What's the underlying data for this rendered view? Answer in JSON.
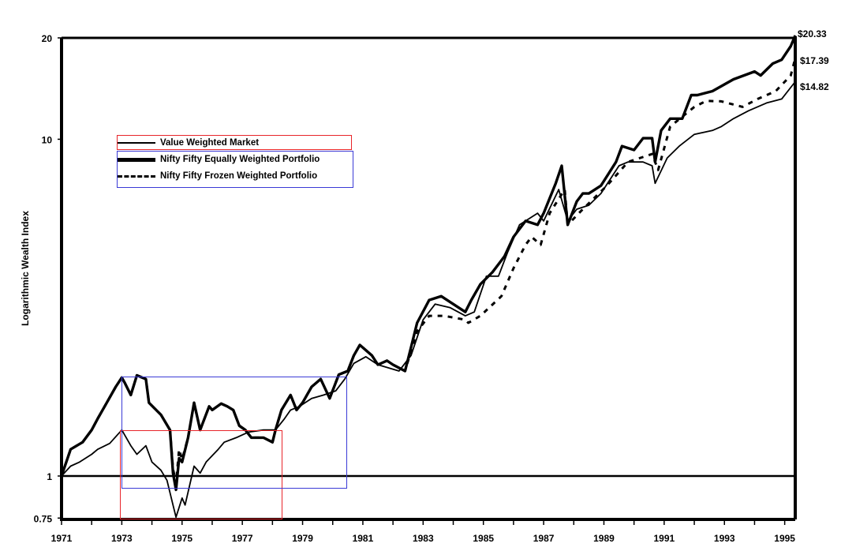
{
  "chart_data": {
    "type": "line",
    "title": "",
    "ylabel": "Logarithmic Wealth Index",
    "xlabel": "",
    "y_scale": "log",
    "ylim": [
      0.75,
      20
    ],
    "xlim": [
      1971,
      1995.35
    ],
    "y_ticks": [
      "20",
      "10",
      "1",
      "0.75"
    ],
    "y_tick_values": [
      20,
      10,
      1,
      0.75
    ],
    "x_ticks": [
      "1971",
      "1973",
      "1975",
      "1977",
      "1979",
      "1981",
      "1983",
      "1985",
      "1987",
      "1989",
      "1991",
      "1993",
      "1995"
    ],
    "reference_line": 1,
    "legend_placement": "upper-left",
    "grid": false,
    "series": [
      {
        "name": "Value Weighted Market",
        "style": "thin-solid",
        "end_label": "$14.82",
        "points": [
          [
            1971.0,
            1.0
          ],
          [
            1971.3,
            1.07
          ],
          [
            1971.6,
            1.1
          ],
          [
            1972.0,
            1.16
          ],
          [
            1972.2,
            1.2
          ],
          [
            1972.6,
            1.25
          ],
          [
            1973.0,
            1.37
          ],
          [
            1973.3,
            1.23
          ],
          [
            1973.5,
            1.16
          ],
          [
            1973.8,
            1.23
          ],
          [
            1974.0,
            1.1
          ],
          [
            1974.3,
            1.04
          ],
          [
            1974.5,
            0.97
          ],
          [
            1974.7,
            0.82
          ],
          [
            1974.8,
            0.755
          ],
          [
            1975.0,
            0.86
          ],
          [
            1975.1,
            0.82
          ],
          [
            1975.4,
            1.07
          ],
          [
            1975.6,
            1.02
          ],
          [
            1975.8,
            1.1
          ],
          [
            1976.2,
            1.2
          ],
          [
            1976.4,
            1.26
          ],
          [
            1976.8,
            1.3
          ],
          [
            1977.2,
            1.35
          ],
          [
            1977.7,
            1.37
          ],
          [
            1978.1,
            1.37
          ],
          [
            1978.4,
            1.48
          ],
          [
            1978.6,
            1.57
          ],
          [
            1978.9,
            1.61
          ],
          [
            1979.3,
            1.7
          ],
          [
            1979.7,
            1.74
          ],
          [
            1980.1,
            1.79
          ],
          [
            1980.4,
            1.94
          ],
          [
            1980.7,
            2.16
          ],
          [
            1981.1,
            2.26
          ],
          [
            1981.5,
            2.14
          ],
          [
            1982.2,
            2.05
          ],
          [
            1982.6,
            2.28
          ],
          [
            1983.0,
            2.91
          ],
          [
            1983.4,
            3.24
          ],
          [
            1983.9,
            3.16
          ],
          [
            1984.4,
            2.99
          ],
          [
            1984.7,
            3.07
          ],
          [
            1985.1,
            3.92
          ],
          [
            1985.5,
            3.92
          ],
          [
            1985.8,
            4.61
          ],
          [
            1986.2,
            5.57
          ],
          [
            1986.8,
            6.03
          ],
          [
            1987.0,
            5.72
          ],
          [
            1987.5,
            7.09
          ],
          [
            1987.8,
            5.72
          ],
          [
            1988.1,
            6.2
          ],
          [
            1988.5,
            6.37
          ],
          [
            1988.9,
            6.9
          ],
          [
            1989.5,
            8.34
          ],
          [
            1989.8,
            8.56
          ],
          [
            1990.3,
            8.56
          ],
          [
            1990.6,
            8.34
          ],
          [
            1990.7,
            7.4
          ],
          [
            1991.1,
            8.8
          ],
          [
            1991.5,
            9.54
          ],
          [
            1992.0,
            10.34
          ],
          [
            1992.6,
            10.62
          ],
          [
            1992.9,
            10.91
          ],
          [
            1993.3,
            11.51
          ],
          [
            1993.8,
            12.15
          ],
          [
            1994.4,
            12.82
          ],
          [
            1994.9,
            13.17
          ],
          [
            1995.35,
            14.82
          ]
        ]
      },
      {
        "name": "Nifty Fifty Equally Weighted Portfolio",
        "style": "thick-solid",
        "end_label": "$20.33",
        "points": [
          [
            1971.0,
            1.0
          ],
          [
            1971.3,
            1.2
          ],
          [
            1971.7,
            1.26
          ],
          [
            1972.0,
            1.37
          ],
          [
            1972.2,
            1.48
          ],
          [
            1972.5,
            1.65
          ],
          [
            1972.8,
            1.84
          ],
          [
            1973.0,
            1.96
          ],
          [
            1973.1,
            1.89
          ],
          [
            1973.3,
            1.74
          ],
          [
            1973.5,
            1.99
          ],
          [
            1973.8,
            1.94
          ],
          [
            1973.9,
            1.65
          ],
          [
            1974.3,
            1.52
          ],
          [
            1974.6,
            1.37
          ],
          [
            1974.7,
            1.02
          ],
          [
            1974.8,
            0.91
          ],
          [
            1974.9,
            1.13
          ],
          [
            1975.0,
            1.1
          ],
          [
            1975.2,
            1.3
          ],
          [
            1975.4,
            1.65
          ],
          [
            1975.6,
            1.37
          ],
          [
            1975.9,
            1.61
          ],
          [
            1976.0,
            1.57
          ],
          [
            1976.3,
            1.64
          ],
          [
            1976.5,
            1.61
          ],
          [
            1976.7,
            1.57
          ],
          [
            1976.9,
            1.41
          ],
          [
            1977.1,
            1.37
          ],
          [
            1977.3,
            1.3
          ],
          [
            1977.7,
            1.3
          ],
          [
            1978.0,
            1.26
          ],
          [
            1978.1,
            1.37
          ],
          [
            1978.3,
            1.57
          ],
          [
            1978.6,
            1.74
          ],
          [
            1978.8,
            1.57
          ],
          [
            1979.0,
            1.65
          ],
          [
            1979.3,
            1.84
          ],
          [
            1979.6,
            1.94
          ],
          [
            1979.9,
            1.7
          ],
          [
            1980.2,
            2.0
          ],
          [
            1980.5,
            2.05
          ],
          [
            1980.7,
            2.28
          ],
          [
            1980.9,
            2.45
          ],
          [
            1981.3,
            2.28
          ],
          [
            1981.5,
            2.14
          ],
          [
            1981.8,
            2.2
          ],
          [
            1982.0,
            2.14
          ],
          [
            1982.4,
            2.05
          ],
          [
            1982.6,
            2.41
          ],
          [
            1982.8,
            2.85
          ],
          [
            1983.2,
            3.33
          ],
          [
            1983.6,
            3.42
          ],
          [
            1984.0,
            3.24
          ],
          [
            1984.4,
            3.07
          ],
          [
            1984.6,
            3.33
          ],
          [
            1984.9,
            3.71
          ],
          [
            1985.3,
            4.03
          ],
          [
            1985.7,
            4.49
          ],
          [
            1986.0,
            5.13
          ],
          [
            1986.4,
            5.72
          ],
          [
            1986.8,
            5.57
          ],
          [
            1987.0,
            6.03
          ],
          [
            1987.4,
            7.4
          ],
          [
            1987.6,
            8.34
          ],
          [
            1987.8,
            5.57
          ],
          [
            1988.1,
            6.54
          ],
          [
            1988.3,
            6.9
          ],
          [
            1988.5,
            6.9
          ],
          [
            1988.9,
            7.28
          ],
          [
            1989.4,
            8.56
          ],
          [
            1989.6,
            9.54
          ],
          [
            1990.0,
            9.29
          ],
          [
            1990.3,
            10.07
          ],
          [
            1990.6,
            10.07
          ],
          [
            1990.7,
            8.56
          ],
          [
            1990.9,
            10.62
          ],
          [
            1991.2,
            11.51
          ],
          [
            1991.6,
            11.51
          ],
          [
            1991.9,
            13.52
          ],
          [
            1992.1,
            13.52
          ],
          [
            1992.6,
            13.89
          ],
          [
            1993.3,
            15.06
          ],
          [
            1994.0,
            15.89
          ],
          [
            1994.2,
            15.47
          ],
          [
            1994.6,
            16.77
          ],
          [
            1994.9,
            17.22
          ],
          [
            1995.2,
            18.9
          ],
          [
            1995.35,
            20.33
          ]
        ]
      },
      {
        "name": "Nifty Fifty Frozen Weighted Portfolio",
        "style": "dashed",
        "end_label": "$17.39",
        "points": [
          [
            1971.0,
            1.0
          ],
          [
            1971.3,
            1.2
          ],
          [
            1971.7,
            1.26
          ],
          [
            1972.0,
            1.37
          ],
          [
            1972.2,
            1.48
          ],
          [
            1972.5,
            1.65
          ],
          [
            1972.8,
            1.84
          ],
          [
            1973.0,
            1.96
          ],
          [
            1973.1,
            1.89
          ],
          [
            1973.3,
            1.74
          ],
          [
            1973.5,
            1.99
          ],
          [
            1973.8,
            1.94
          ],
          [
            1973.9,
            1.65
          ],
          [
            1974.3,
            1.52
          ],
          [
            1974.6,
            1.37
          ],
          [
            1974.7,
            1.05
          ],
          [
            1974.8,
            0.95
          ],
          [
            1974.9,
            1.2
          ],
          [
            1975.0,
            1.12
          ],
          [
            1975.2,
            1.3
          ],
          [
            1975.4,
            1.65
          ],
          [
            1975.6,
            1.37
          ],
          [
            1975.9,
            1.61
          ],
          [
            1976.0,
            1.57
          ],
          [
            1976.3,
            1.64
          ],
          [
            1976.5,
            1.61
          ],
          [
            1976.7,
            1.57
          ],
          [
            1976.9,
            1.41
          ],
          [
            1977.1,
            1.37
          ],
          [
            1977.3,
            1.3
          ],
          [
            1977.7,
            1.3
          ],
          [
            1978.0,
            1.26
          ],
          [
            1978.1,
            1.37
          ],
          [
            1978.3,
            1.57
          ],
          [
            1978.6,
            1.74
          ],
          [
            1978.8,
            1.57
          ],
          [
            1979.0,
            1.65
          ],
          [
            1979.3,
            1.84
          ],
          [
            1979.6,
            1.94
          ],
          [
            1979.9,
            1.7
          ],
          [
            1980.2,
            2.0
          ],
          [
            1980.5,
            2.05
          ],
          [
            1980.7,
            2.28
          ],
          [
            1980.9,
            2.45
          ],
          [
            1981.3,
            2.28
          ],
          [
            1981.5,
            2.14
          ],
          [
            1981.8,
            2.2
          ],
          [
            1982.0,
            2.14
          ],
          [
            1982.4,
            2.05
          ],
          [
            1982.6,
            2.35
          ],
          [
            1982.8,
            2.69
          ],
          [
            1983.2,
            2.99
          ],
          [
            1983.7,
            2.99
          ],
          [
            1984.4,
            2.91
          ],
          [
            1984.5,
            2.85
          ],
          [
            1984.9,
            2.99
          ],
          [
            1985.6,
            3.42
          ],
          [
            1986.0,
            4.14
          ],
          [
            1986.4,
            4.86
          ],
          [
            1986.6,
            5.13
          ],
          [
            1986.9,
            4.86
          ],
          [
            1987.2,
            6.03
          ],
          [
            1987.7,
            7.09
          ],
          [
            1987.8,
            5.57
          ],
          [
            1988.3,
            6.2
          ],
          [
            1989.1,
            7.28
          ],
          [
            1989.8,
            8.56
          ],
          [
            1990.6,
            9.04
          ],
          [
            1990.8,
            8.1
          ],
          [
            1991.2,
            10.91
          ],
          [
            1992.0,
            12.48
          ],
          [
            1992.4,
            13.0
          ],
          [
            1992.9,
            12.96
          ],
          [
            1993.6,
            12.48
          ],
          [
            1994.1,
            13.17
          ],
          [
            1994.7,
            13.89
          ],
          [
            1995.2,
            15.47
          ],
          [
            1995.35,
            17.39
          ]
        ]
      }
    ]
  },
  "annotation_colors": {
    "red": "#e8252a",
    "blue": "#3a3ad6"
  }
}
